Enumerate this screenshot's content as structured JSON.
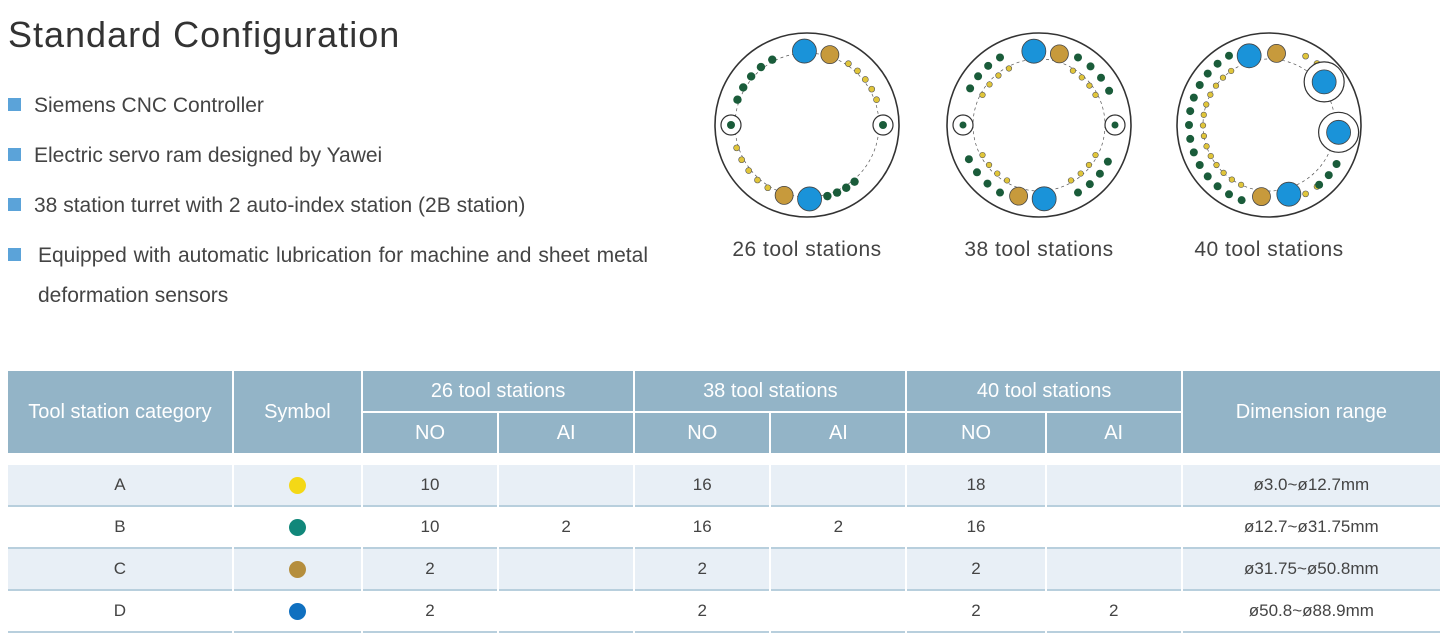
{
  "title": "Standard Configuration",
  "bullets": [
    "Siemens CNC Controller",
    "Electric servo ram designed by Yawei",
    "38 station turret with 2 auto-index station (2B station)",
    "Equipped with automatic lubrication for machine and sheet metal deformation sensors"
  ],
  "turrets": [
    {
      "caption": "26 tool stations"
    },
    {
      "caption": "38 tool stations"
    },
    {
      "caption": "40 tool stations"
    }
  ],
  "colors": {
    "accent": "#5ba3d9",
    "header_bg": "#93b4c7",
    "row_alt": "#e8eff6",
    "A": "#f4d816",
    "B": "#11877a",
    "C": "#b58e3d",
    "D": "#1070c0",
    "turret_green": "#1a5c3a",
    "turret_yellow": "#e0c53a",
    "turret_gold": "#c79a3c",
    "turret_blue": "#1a93d9"
  },
  "table": {
    "headers": {
      "category": "Tool station category",
      "symbol": "Symbol",
      "groups": [
        "26 tool stations",
        "38 tool stations",
        "40 tool stations"
      ],
      "sub": [
        "NO",
        "AI",
        "NO",
        "AI",
        "NO",
        "AI"
      ],
      "dimension": "Dimension range"
    },
    "rows": [
      {
        "cat": "A",
        "color": "#f4d816",
        "c26no": "10",
        "c26ai": "",
        "c38no": "16",
        "c38ai": "",
        "c40no": "18",
        "c40ai": "",
        "dim": "ø3.0~ø12.7mm"
      },
      {
        "cat": "B",
        "color": "#11877a",
        "c26no": "10",
        "c26ai": "2",
        "c38no": "16",
        "c38ai": "2",
        "c40no": "16",
        "c40ai": "",
        "dim": "ø12.7~ø31.75mm"
      },
      {
        "cat": "C",
        "color": "#b58e3d",
        "c26no": "2",
        "c26ai": "",
        "c38no": "2",
        "c38ai": "",
        "c40no": "2",
        "c40ai": "",
        "dim": "ø31.75~ø50.8mm"
      },
      {
        "cat": "D",
        "color": "#1070c0",
        "c26no": "2",
        "c26ai": "",
        "c38no": "2",
        "c38ai": "",
        "c40no": "2",
        "c40ai": "2",
        "dim": "ø50.8~ø88.9mm"
      }
    ]
  }
}
